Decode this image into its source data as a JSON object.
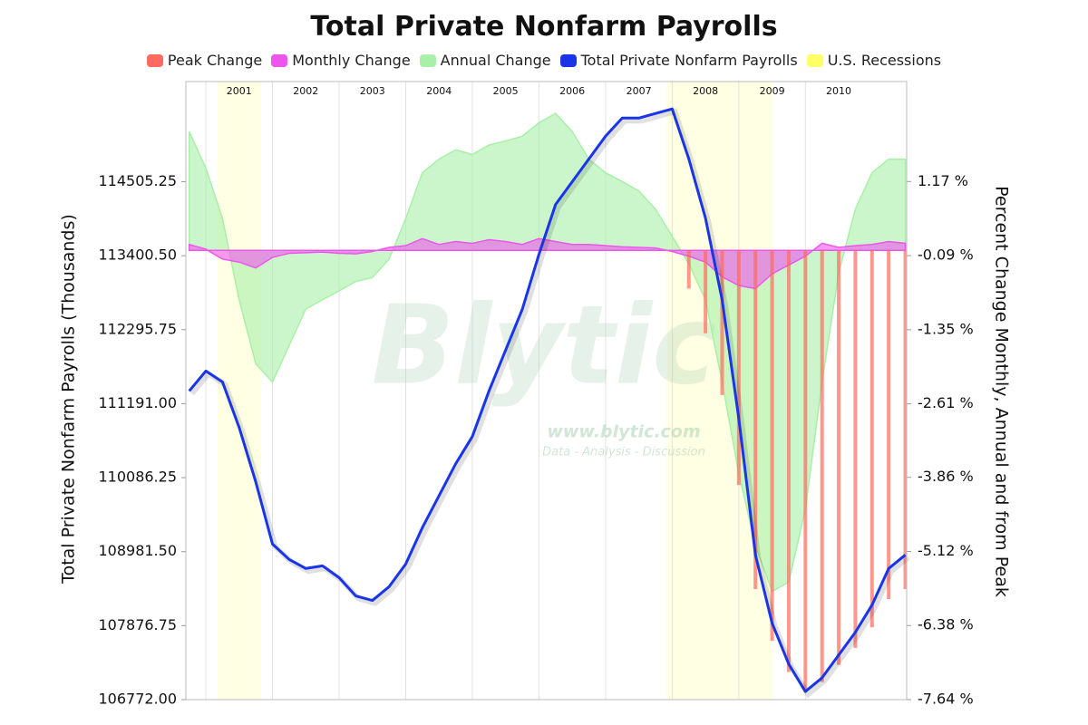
{
  "chart_data": {
    "type": "combo",
    "title": "Total Private Nonfarm Payrolls",
    "y_label": "Total Private Nonfarm Payrolls (Thousands)",
    "y2_label": "Percent Change Monthly, Annual and from Peak",
    "watermark": {
      "title": "Blytic",
      "url": "www.blytic.com",
      "tagline": "Data - Analysis - Discussion"
    },
    "x": [
      2000.75,
      2001.0,
      2001.25,
      2001.5,
      2001.75,
      2002.0,
      2002.25,
      2002.5,
      2002.75,
      2003.0,
      2003.25,
      2003.5,
      2003.75,
      2004.0,
      2004.25,
      2004.5,
      2004.75,
      2005.0,
      2005.25,
      2005.5,
      2005.75,
      2006.0,
      2006.25,
      2006.5,
      2006.75,
      2007.0,
      2007.25,
      2007.5,
      2007.75,
      2008.0,
      2008.25,
      2008.5,
      2008.75,
      2009.0,
      2009.25,
      2009.5,
      2009.75,
      2010.0,
      2010.25,
      2010.5,
      2010.75,
      2011.0,
      2011.25,
      2011.5
    ],
    "xlim": [
      2000.7,
      2011.52
    ],
    "xticks": [
      2001,
      2002,
      2003,
      2004,
      2005,
      2006,
      2007,
      2008,
      2009,
      2010
    ],
    "ylim": [
      106772,
      116000
    ],
    "yticks": [
      {
        "value": 106772,
        "label": "106772.00"
      },
      107876.75,
      {
        "value": 108981.5,
        "label": "108981.50"
      },
      110086.25,
      {
        "value": 111191,
        "label": "111191.00"
      },
      112295.75,
      {
        "value": 113400.5,
        "label": "113400.50"
      },
      114505.25
    ],
    "y2lim": [
      -7.64,
      2.87
    ],
    "y2ticks": [
      {
        "value": -7.64,
        "label": "-7.64 %"
      },
      {
        "value": -6.38,
        "label": "-6.38 %"
      },
      {
        "value": -5.12,
        "label": "-5.12 %"
      },
      {
        "value": -3.86,
        "label": "-3.86 %"
      },
      {
        "value": -2.61,
        "label": "-2.61 %"
      },
      {
        "value": -1.35,
        "label": "-1.35 %"
      },
      {
        "value": -0.09,
        "label": "-0.09 %"
      },
      {
        "value": 1.17,
        "label": "1.17 %"
      }
    ],
    "grid": true,
    "recessions": {
      "name": "U.S. Recessions",
      "color": "#ffff66",
      "ranges": [
        [
          2001.17,
          2001.83
        ],
        [
          2007.92,
          2009.5
        ]
      ]
    },
    "series": [
      {
        "name": "Peak Change",
        "type": "bar",
        "axis": "y2",
        "color": "#ff6b5e",
        "values": [
          null,
          null,
          null,
          null,
          null,
          null,
          null,
          null,
          null,
          null,
          null,
          null,
          null,
          null,
          null,
          null,
          null,
          null,
          null,
          null,
          null,
          null,
          null,
          null,
          null,
          null,
          null,
          null,
          null,
          0,
          -0.65,
          -1.41,
          -2.46,
          -3.99,
          -5.76,
          -6.64,
          -7.17,
          -7.52,
          -7.34,
          -7.05,
          -6.76,
          -6.41,
          -5.93,
          -5.76
        ]
      },
      {
        "name": "Monthly Change",
        "type": "area",
        "axis": "y2",
        "color": "#ee55ee",
        "values": [
          0.1,
          0.02,
          -0.15,
          -0.2,
          -0.3,
          -0.12,
          -0.05,
          -0.04,
          -0.03,
          -0.05,
          -0.06,
          -0.02,
          0.05,
          0.08,
          0.2,
          0.1,
          0.15,
          0.12,
          0.18,
          0.15,
          0.1,
          0.2,
          0.15,
          0.1,
          0.1,
          0.08,
          0.06,
          0.05,
          0.04,
          -0.02,
          -0.1,
          -0.2,
          -0.45,
          -0.6,
          -0.65,
          -0.4,
          -0.25,
          -0.1,
          0.12,
          0.05,
          0.08,
          0.1,
          0.15,
          0.12
        ]
      },
      {
        "name": "Annual Change",
        "type": "area",
        "axis": "y2",
        "color": "#a8f0a8",
        "values": [
          2.02,
          1.4,
          0.54,
          -0.84,
          -1.93,
          -2.24,
          -1.62,
          -1.0,
          -0.84,
          -0.69,
          -0.53,
          -0.46,
          -0.15,
          0.54,
          1.32,
          1.55,
          1.71,
          1.63,
          1.79,
          1.86,
          1.94,
          2.17,
          2.33,
          2.02,
          1.55,
          1.32,
          1.17,
          1.01,
          0.7,
          0.24,
          -0.23,
          -0.84,
          -2.24,
          -3.79,
          -5.02,
          -5.8,
          -5.64,
          -4.4,
          -2.24,
          -0.38,
          0.7,
          1.32,
          1.55,
          1.55
        ]
      },
      {
        "name": "Total Private Nonfarm Payrolls",
        "type": "line",
        "color": "#1a35e8",
        "values": [
          111380,
          111678,
          111515,
          110835,
          110020,
          109096,
          108865,
          108730,
          108770,
          108593,
          108321,
          108253,
          108457,
          108797,
          109340,
          109816,
          110292,
          110700,
          111380,
          111990,
          112600,
          113420,
          114165,
          114505,
          114845,
          115185,
          115455,
          115455,
          115524,
          115592,
          114845,
          113960,
          112740,
          110970,
          108933,
          107914,
          107302,
          106894,
          107098,
          107438,
          107778,
          108185,
          108730,
          108933
        ]
      }
    ]
  }
}
